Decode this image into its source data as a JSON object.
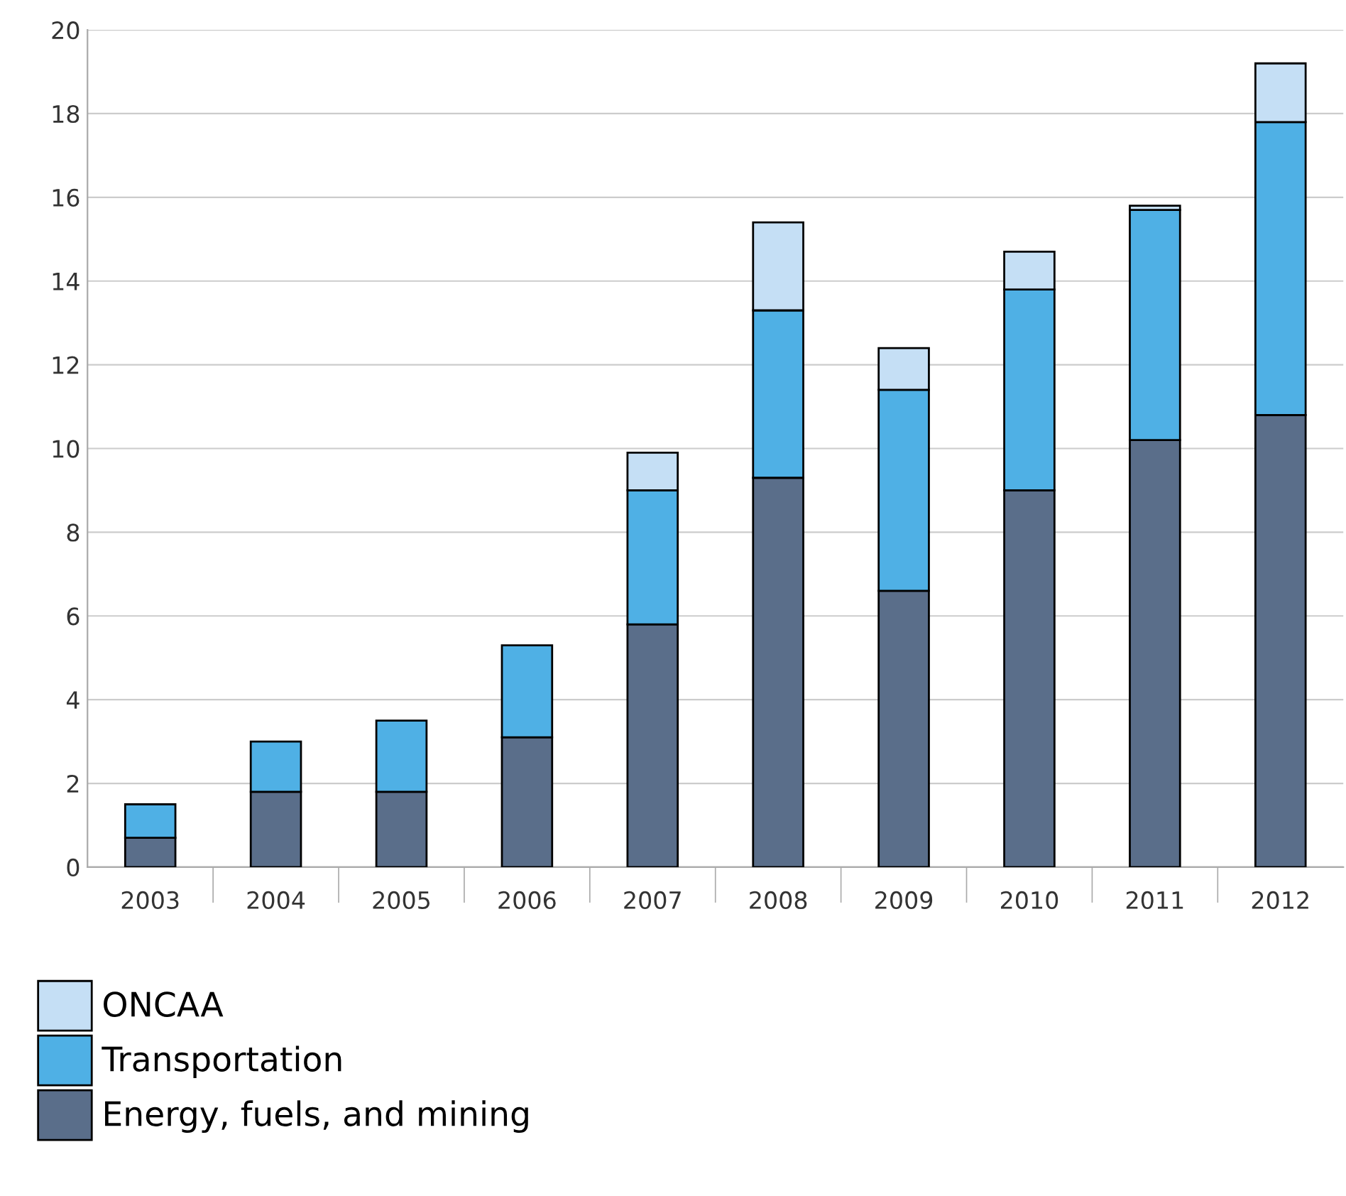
{
  "chart_data": {
    "type": "bar",
    "stacked": true,
    "categories": [
      "2003",
      "2004",
      "2005",
      "2006",
      "2007",
      "2008",
      "2009",
      "2010",
      "2011",
      "2012"
    ],
    "series": [
      {
        "name": "Energy, fuels, and mining",
        "color": "#5a6e8a",
        "values": [
          0.7,
          1.8,
          1.8,
          3.1,
          5.8,
          9.3,
          6.6,
          9.0,
          10.2,
          10.8
        ]
      },
      {
        "name": "Transportation",
        "color": "#4fb0e5",
        "values": [
          0.8,
          1.2,
          1.7,
          2.2,
          3.2,
          4.0,
          4.8,
          4.8,
          5.5,
          7.0
        ]
      },
      {
        "name": "ONCAA",
        "color": "#c5dff5",
        "values": [
          null,
          null,
          null,
          null,
          0.9,
          2.1,
          1.0,
          0.9,
          0.1,
          1.4
        ]
      }
    ],
    "ylim": [
      0,
      20
    ],
    "yticks": [
      0,
      2,
      4,
      6,
      8,
      10,
      12,
      14,
      16,
      18,
      20
    ],
    "grid": "y",
    "legend": "bottom left"
  }
}
